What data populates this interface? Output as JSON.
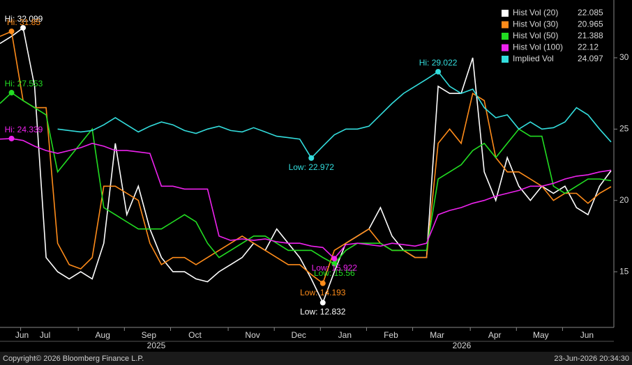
{
  "chart_data": {
    "type": "line",
    "categories": [
      null,
      "Jun",
      null,
      "Jul",
      null,
      null,
      null,
      null,
      "Aug",
      null,
      null,
      null,
      "Sep",
      null,
      null,
      null,
      "Oct",
      null,
      null,
      null,
      null,
      "Nov",
      null,
      null,
      null,
      "Dec",
      null,
      null,
      null,
      "Jan",
      null,
      null,
      null,
      "Feb",
      null,
      null,
      null,
      "Mar",
      null,
      null,
      null,
      null,
      "Apr",
      null,
      null,
      null,
      "May",
      null,
      null,
      null,
      "Jun",
      null,
      null,
      null
    ],
    "year_labels": [
      "2025",
      "2026"
    ],
    "ylim": [
      11.1,
      34.05
    ],
    "yticks": [
      15,
      20,
      25,
      30
    ],
    "grid": false,
    "series": [
      {
        "name": "Hist Vol (20)",
        "color": "#ffffff",
        "hi_label": "Hi: 32.099",
        "low_label": "Low: 12.832",
        "values": [
          31,
          31.5,
          32.099,
          28,
          16,
          15,
          14.5,
          15,
          14.5,
          17,
          24,
          19,
          21,
          18,
          16,
          15,
          15,
          14.5,
          14.3,
          15,
          15.5,
          16,
          17,
          16.5,
          18,
          17,
          16,
          14.5,
          12.832,
          15,
          17,
          17.5,
          18,
          19.5,
          17.5,
          16.5,
          16,
          16,
          28,
          27.5,
          27.5,
          30,
          22,
          20,
          23,
          21,
          20,
          21,
          20.5,
          21,
          19.5,
          19,
          21,
          22.085
        ]
      },
      {
        "name": "Hist Vol (30)",
        "color": "#ff8c1a",
        "hi_label": "Hi: 31.85",
        "low_label": "Low: 14.193",
        "values": [
          31.5,
          31.85,
          27,
          26.5,
          26.5,
          17,
          15.5,
          15.2,
          16,
          21,
          21,
          20.5,
          20,
          17,
          15.5,
          16,
          16,
          15.5,
          16,
          16.5,
          17,
          17.5,
          17,
          16.5,
          16,
          15.5,
          15.5,
          14.8,
          14.193,
          16.5,
          17,
          17.5,
          18,
          17,
          16.5,
          16.5,
          16,
          16,
          24,
          25,
          24,
          27.5,
          27,
          23,
          22,
          22,
          21.5,
          21,
          20,
          20.5,
          20.5,
          19.8,
          20.5,
          20.965
        ]
      },
      {
        "name": "Hist Vol (50)",
        "color": "#22dd22",
        "hi_label": "Hi: 27.553",
        "low_label": "Low: 15.56",
        "values": [
          26.8,
          27.553,
          27,
          26.5,
          26,
          22,
          23,
          24,
          25,
          19.5,
          19,
          18.5,
          18,
          18,
          18,
          18.5,
          19,
          18.5,
          17,
          16,
          16.5,
          17,
          17.5,
          17.5,
          17,
          16.5,
          16.5,
          16.5,
          16,
          15.56,
          16.5,
          17,
          17,
          17,
          16.5,
          16.5,
          16.5,
          16.5,
          21.5,
          22,
          22.5,
          23.5,
          24,
          23,
          24,
          25,
          24.5,
          24.5,
          21,
          20.5,
          21,
          21.5,
          21.5,
          21.388
        ]
      },
      {
        "name": "Hist Vol (100)",
        "color": "#ee22ee",
        "hi_label": "Hi: 24.339",
        "low_label": "Low: 15.922",
        "values": [
          24.3,
          24.339,
          24.2,
          23.8,
          23.5,
          23.3,
          23.5,
          23.7,
          24,
          23.8,
          23.5,
          23.5,
          23.4,
          23.3,
          21,
          21,
          20.8,
          20.8,
          20.8,
          17.5,
          17.2,
          17.3,
          17.2,
          17.3,
          17.1,
          17,
          17,
          16.8,
          16.7,
          15.922,
          16.9,
          17,
          16.9,
          16.8,
          17,
          16.9,
          16.8,
          17,
          19,
          19.3,
          19.5,
          19.8,
          20,
          20.3,
          20.5,
          20.7,
          21,
          21,
          21.2,
          21.5,
          21.7,
          21.8,
          22,
          22.12
        ]
      },
      {
        "name": "Implied Vol",
        "color": "#33dddd",
        "hi_label": "Hi: 29.022",
        "low_label": "Low: 22.972",
        "values": [
          null,
          null,
          null,
          null,
          null,
          25,
          24.9,
          24.8,
          24.9,
          25.3,
          25.8,
          25.3,
          24.8,
          25.2,
          25.5,
          25.3,
          24.9,
          24.7,
          25,
          25.2,
          24.9,
          24.8,
          25.1,
          24.8,
          24.5,
          24.4,
          24.3,
          22.972,
          23.8,
          24.6,
          25,
          25,
          25.2,
          26,
          26.8,
          27.5,
          28,
          28.5,
          29.022,
          28,
          27.5,
          27.8,
          26.5,
          25.8,
          26,
          25,
          25.5,
          25,
          25.1,
          25.5,
          26.5,
          26,
          25,
          24.097
        ]
      }
    ],
    "footer_left": "Copyright© 2026 Bloomberg Finance L.P.",
    "footer_right": "23-Jun-2026 20:34:30"
  }
}
